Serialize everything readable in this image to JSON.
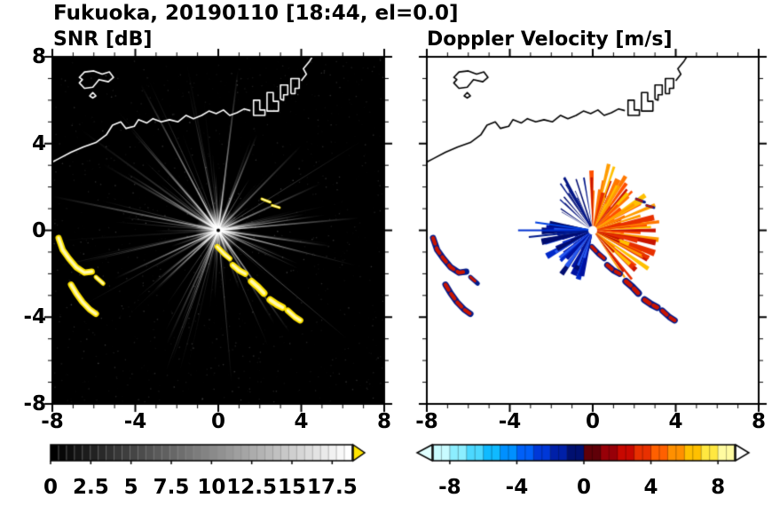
{
  "title": "Fukuoka, 20190110 [18:44, el=0.0]",
  "chart_data": {
    "type": "heatmap",
    "title": "Fukuoka, 20190110 [18:44, el=0.0]",
    "station": "Fukuoka",
    "date_label": "20190110",
    "time_label": "18:44",
    "elevation_label": "el=0.0",
    "axes": {
      "xlim": [
        -8,
        8
      ],
      "ylim": [
        -8,
        8
      ],
      "xticks": [
        -8,
        -4,
        0,
        4,
        8
      ],
      "yticks": [
        8,
        4,
        0,
        -4,
        -8
      ],
      "minor_step": 1
    },
    "radar_center": [
      0,
      0
    ],
    "radar_marker": {
      "snr_outer": "#ffffff",
      "snr_inner": "#000000",
      "velocity": "#ffffff"
    },
    "panels": [
      {
        "id": "snr",
        "title": "SNR [dB]",
        "background": "#000000",
        "coast_color": "#ffffff",
        "colorbar": {
          "type": "grayscale",
          "range": [
            0,
            18.75
          ],
          "labels": [
            "0",
            "2.5",
            "5",
            "7.5",
            "10",
            "12.5",
            "15",
            "17.5"
          ],
          "values": [
            0,
            2.5,
            5,
            7.5,
            10,
            12.5,
            15,
            17.5
          ],
          "start_color": "#000000",
          "end_color": "#ffffff",
          "overflow_color": "#ffe400"
        }
      },
      {
        "id": "velocity",
        "title": "Doppler Velocity [m/s]",
        "background": "#ffffff",
        "coast_color": "#000000",
        "colorbar": {
          "type": "segmented",
          "range": [
            -9,
            9
          ],
          "labels": [
            "-8",
            "-4",
            "0",
            "4",
            "8"
          ],
          "values": [
            -8,
            -4,
            0,
            4,
            8
          ],
          "segments": [
            "#c8fbff",
            "#8ceeff",
            "#4cd8ff",
            "#10baff",
            "#0090ff",
            "#0060f8",
            "#0038d8",
            "#0020a8",
            "#001070",
            "#600008",
            "#980008",
            "#c80800",
            "#e83000",
            "#ff6000",
            "#ff9000",
            "#ffc000",
            "#ffe840",
            "#fffba0"
          ],
          "under_color": "#e0ffff",
          "over_color": "#ffffff"
        }
      }
    ],
    "coastline": [
      [
        -8.3,
        3.0
      ],
      [
        -7.7,
        3.3
      ],
      [
        -7.1,
        3.6
      ],
      [
        -6.5,
        3.85
      ],
      [
        -5.9,
        4.05
      ],
      [
        -5.4,
        4.4
      ],
      [
        -5.1,
        4.85
      ],
      [
        -4.7,
        5.0
      ],
      [
        -4.45,
        4.7
      ],
      [
        -4.05,
        4.8
      ],
      [
        -3.85,
        5.1
      ],
      [
        -3.45,
        4.95
      ],
      [
        -3.15,
        5.15
      ],
      [
        -2.75,
        5.0
      ],
      [
        -2.35,
        5.1
      ],
      [
        -1.95,
        5.0
      ],
      [
        -1.55,
        5.3
      ],
      [
        -1.2,
        5.15
      ],
      [
        -0.8,
        5.3
      ],
      [
        -0.45,
        5.5
      ],
      [
        -0.1,
        5.38
      ],
      [
        0.25,
        5.55
      ],
      [
        0.55,
        5.3
      ],
      [
        0.9,
        5.42
      ],
      [
        1.25,
        5.6
      ],
      [
        1.55,
        5.52
      ]
    ],
    "harbor_shapes": [
      [
        [
          1.7,
          5.45
        ],
        [
          1.7,
          6.0
        ],
        [
          2.0,
          6.0
        ],
        [
          2.0,
          5.55
        ],
        [
          2.25,
          5.55
        ],
        [
          2.25,
          5.3
        ],
        [
          1.7,
          5.3
        ],
        [
          1.7,
          5.45
        ]
      ],
      [
        [
          2.35,
          5.6
        ],
        [
          2.35,
          6.35
        ],
        [
          2.65,
          6.35
        ],
        [
          2.65,
          5.95
        ],
        [
          2.9,
          5.95
        ],
        [
          2.9,
          5.5
        ],
        [
          2.35,
          5.5
        ],
        [
          2.35,
          5.6
        ]
      ],
      [
        [
          3.0,
          6.05
        ],
        [
          3.0,
          6.7
        ],
        [
          3.35,
          6.7
        ],
        [
          3.35,
          6.25
        ],
        [
          3.15,
          6.25
        ],
        [
          3.15,
          6.0
        ],
        [
          3.0,
          6.05
        ]
      ],
      [
        [
          3.5,
          6.3
        ],
        [
          3.5,
          7.0
        ],
        [
          3.9,
          7.0
        ],
        [
          3.9,
          6.55
        ],
        [
          3.7,
          6.55
        ],
        [
          3.7,
          6.3
        ],
        [
          3.5,
          6.3
        ]
      ],
      [
        [
          4.0,
          6.9
        ],
        [
          4.25,
          7.2
        ],
        [
          4.1,
          7.45
        ],
        [
          4.4,
          7.8
        ],
        [
          4.6,
          8.1
        ]
      ]
    ],
    "islands": [
      [
        [
          -6.7,
          7.05
        ],
        [
          -6.45,
          7.3
        ],
        [
          -6.0,
          7.35
        ],
        [
          -5.6,
          7.2
        ],
        [
          -5.25,
          7.3
        ],
        [
          -5.05,
          7.05
        ],
        [
          -5.3,
          6.85
        ],
        [
          -5.75,
          6.95
        ],
        [
          -6.05,
          6.6
        ],
        [
          -6.45,
          6.55
        ],
        [
          -6.7,
          6.8
        ],
        [
          -6.55,
          6.95
        ],
        [
          -6.7,
          7.05
        ]
      ],
      [
        [
          -6.2,
          6.2
        ],
        [
          -6.05,
          6.35
        ],
        [
          -5.9,
          6.2
        ],
        [
          -6.05,
          6.1
        ],
        [
          -6.2,
          6.2
        ]
      ]
    ],
    "echo_chains": [
      {
        "points": [
          [
            -7.7,
            -0.35
          ],
          [
            -7.5,
            -0.9
          ],
          [
            -7.2,
            -1.3
          ],
          [
            -6.85,
            -1.7
          ],
          [
            -6.45,
            -1.95
          ],
          [
            -6.1,
            -1.9
          ]
        ],
        "width": 7
      },
      {
        "points": [
          [
            -7.1,
            -2.5
          ],
          [
            -6.85,
            -2.9
          ],
          [
            -6.55,
            -3.3
          ],
          [
            -6.2,
            -3.65
          ],
          [
            -5.9,
            -3.85
          ]
        ],
        "width": 7
      },
      {
        "points": [
          [
            -5.9,
            -2.15
          ],
          [
            -5.55,
            -2.45
          ]
        ],
        "width": 5
      },
      {
        "points": [
          [
            -0.05,
            -0.75
          ],
          [
            0.3,
            -1.1
          ],
          [
            0.55,
            -1.3
          ]
        ],
        "width": 6
      },
      {
        "points": [
          [
            0.7,
            -1.6
          ],
          [
            1.0,
            -1.85
          ],
          [
            1.3,
            -2.0
          ]
        ],
        "width": 7
      },
      {
        "points": [
          [
            1.6,
            -2.35
          ],
          [
            1.9,
            -2.6
          ],
          [
            2.2,
            -2.9
          ]
        ],
        "width": 8
      },
      {
        "points": [
          [
            2.5,
            -3.2
          ],
          [
            2.8,
            -3.4
          ],
          [
            3.1,
            -3.55
          ]
        ],
        "width": 8
      },
      {
        "points": [
          [
            3.35,
            -3.7
          ],
          [
            3.7,
            -4.0
          ],
          [
            3.95,
            -4.15
          ]
        ],
        "width": 7
      },
      {
        "points": [
          [
            2.1,
            1.45
          ],
          [
            2.5,
            1.3
          ]
        ],
        "width": 3
      },
      {
        "points": [
          [
            2.6,
            1.15
          ],
          [
            2.95,
            1.05
          ]
        ],
        "width": 3
      }
    ],
    "snr_echo": {
      "base": "#ffe400",
      "highlight": "#fff9b0"
    },
    "vel_echo": {
      "base": "#c81400",
      "patch": "#001a8c"
    },
    "noise": {
      "seed": 5,
      "count": 1200,
      "max_alpha": 0.3
    },
    "snr_rays": {
      "seed": 11,
      "count": 110,
      "rmin": 1.0,
      "rmax": 8.3,
      "alpha_min": 0.06,
      "alpha_max": 0.5,
      "ray_color": "#ffffff",
      "bright": [
        {
          "angle": 83,
          "len": 7.8
        },
        {
          "angle": 118,
          "len": 8.0
        },
        {
          "angle": 131,
          "len": 6.5
        },
        {
          "angle": 148,
          "len": 5.2
        },
        {
          "angle": 5,
          "len": 6.8
        },
        {
          "angle": -8,
          "len": 5.5
        },
        {
          "angle": -55,
          "len": 6.0
        },
        {
          "angle": 205,
          "len": 5.5
        },
        {
          "angle": 223,
          "len": 4.2
        },
        {
          "angle": 68,
          "len": 5.0
        }
      ]
    },
    "velocity_fan": {
      "seed": 42,
      "warm": {
        "a0": -62,
        "a1": 92,
        "count": 85,
        "wmin": 2,
        "wmax": 6,
        "rmin": 0.7,
        "rmax": 3.3,
        "colors": [
          "#ff7800",
          "#ff5000",
          "#ff9c00",
          "#e83000",
          "#ffc000",
          "#c81400"
        ]
      },
      "cool": {
        "a0": 168,
        "a1": 258,
        "count": 55,
        "wmin": 3,
        "wmax": 8,
        "rmin": 0.6,
        "rmax": 2.6,
        "colors": [
          "#0028c8",
          "#0012a0",
          "#2858f0",
          "#000c70"
        ]
      },
      "spikes": {
        "a0": 96,
        "a1": 150,
        "count": 14,
        "wmin": 0.8,
        "wmax": 2,
        "rmin": 1.2,
        "rmax": 3.0,
        "colors": [
          "#001488",
          "#000c70"
        ]
      },
      "long_rays": [
        {
          "angle": 180,
          "len": 3.6,
          "color": "#0030d0",
          "width": 2
        },
        {
          "angle": 186,
          "len": 3.1,
          "color": "#001a8c",
          "width": 2
        },
        {
          "angle": 172,
          "len": 2.8,
          "color": "#0040e0",
          "width": 2
        },
        {
          "angle": 118,
          "len": 2.9,
          "color": "#001488",
          "width": 2
        },
        {
          "angle": 108,
          "len": 2.6,
          "color": "#000c70",
          "width": 1.5
        }
      ]
    }
  }
}
